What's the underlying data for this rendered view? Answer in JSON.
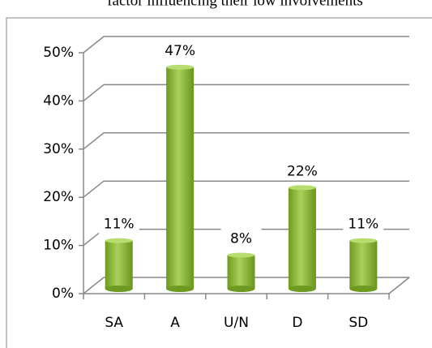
{
  "chart_data": {
    "type": "bar",
    "title": "factor influencing their low involvements",
    "categories": [
      "SA",
      "A",
      "U/N",
      "D",
      "SD"
    ],
    "values": [
      11,
      47,
      8,
      22,
      11
    ],
    "value_labels": [
      "11%",
      "47%",
      "8%",
      "22%",
      "11%"
    ],
    "color": "#8ab53a",
    "ylim": [
      0,
      50
    ],
    "yticks": [
      {
        "value": 0,
        "label": "0%"
      },
      {
        "value": 10,
        "label": "10%"
      },
      {
        "value": 20,
        "label": "20%"
      },
      {
        "value": 30,
        "label": "30%"
      },
      {
        "value": 40,
        "label": "40%"
      },
      {
        "value": 50,
        "label": "50%"
      }
    ],
    "grid": true
  }
}
